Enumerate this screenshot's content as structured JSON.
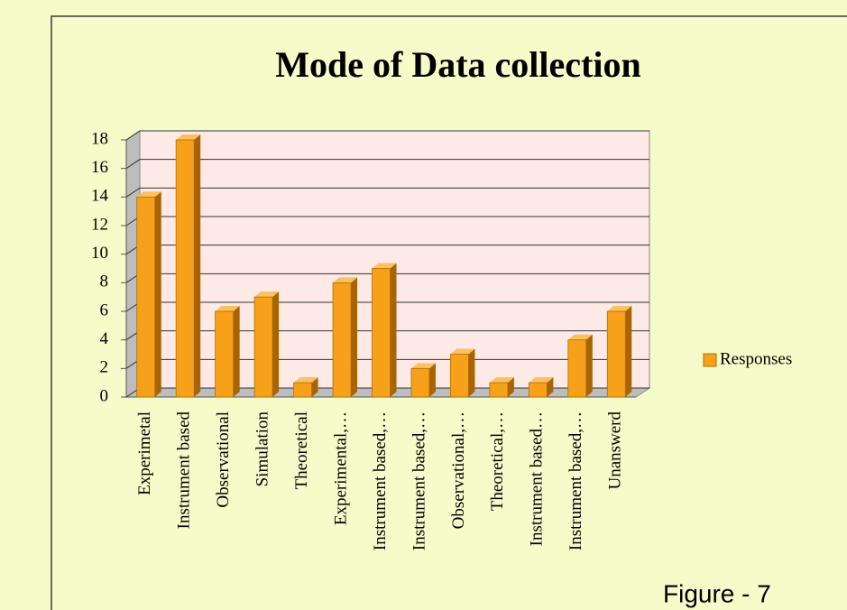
{
  "chart_data": {
    "type": "bar3d",
    "title": "Mode of Data collection",
    "categories": [
      "Experimetal",
      "Instrument based",
      "Observational",
      "Simulation",
      "Theoretical",
      "Experimental,…",
      "Instrument based,…",
      "Instrument based,…",
      "Observational,…",
      "Theoretical,…",
      "Instrument based…",
      "Instrument based,…",
      "Unanswerd"
    ],
    "series": [
      {
        "name": "Responses",
        "color": "#f7a11a",
        "values": [
          14,
          18,
          6,
          7,
          1,
          8,
          9,
          2,
          3,
          1,
          1,
          4,
          6
        ]
      }
    ],
    "ylim": [
      0,
      18
    ],
    "yticks": [
      0,
      2,
      4,
      6,
      8,
      10,
      12,
      14,
      16,
      18
    ],
    "grid": true,
    "legend": "right",
    "annotation": "Figure - 7"
  }
}
